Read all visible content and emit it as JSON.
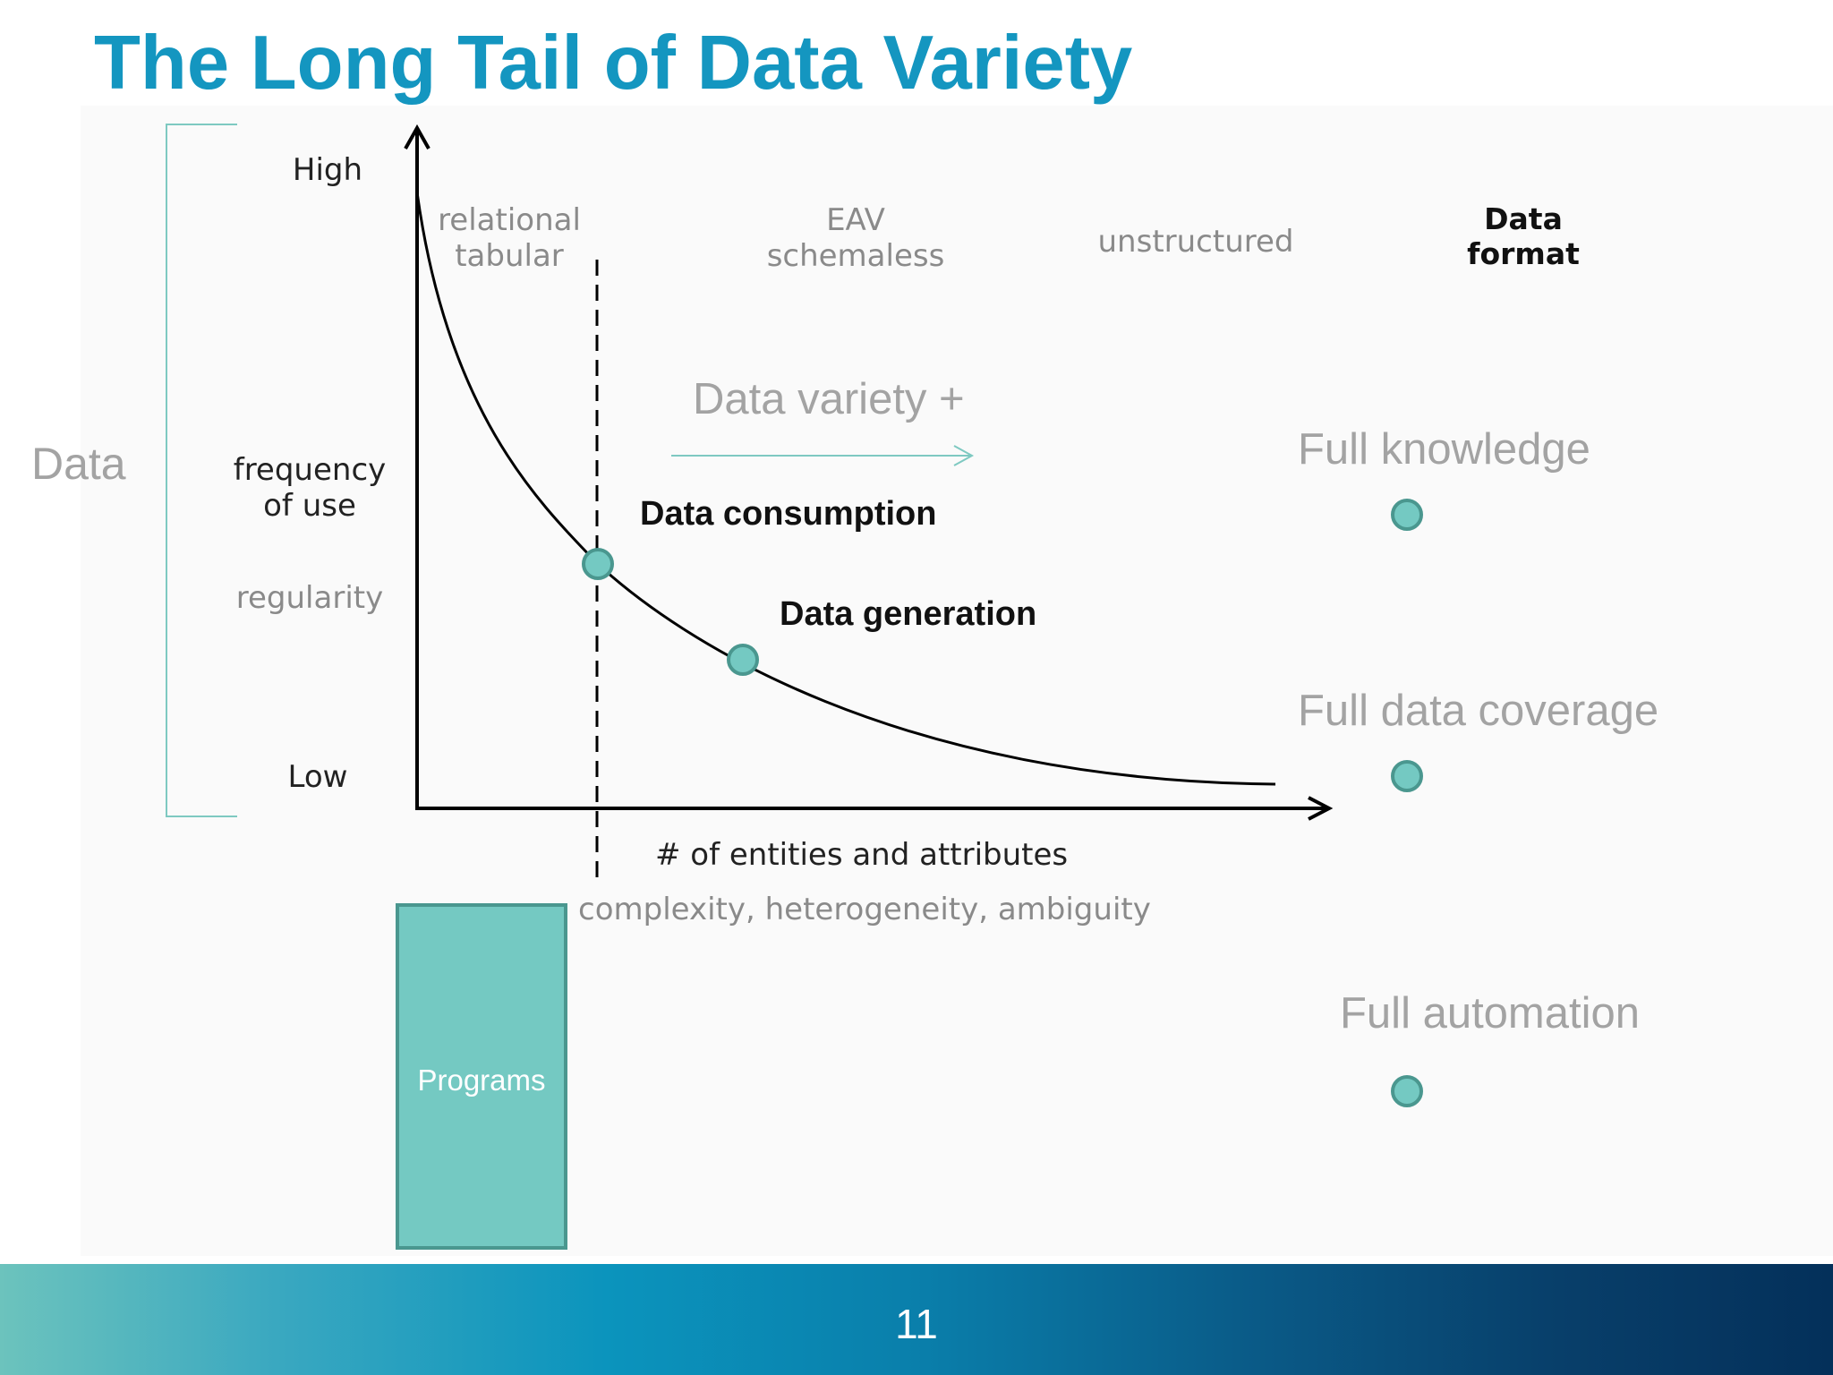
{
  "slide": {
    "title": "The Long Tail of Data Variety",
    "page_number": "11"
  },
  "left_bracket": {
    "label": "Data"
  },
  "y_axis": {
    "high": "High",
    "frequency_line1": "frequency",
    "frequency_line2": "of use",
    "regularity": "regularity",
    "low": "Low"
  },
  "formats": {
    "relational_line1": "relational",
    "relational_line2": "tabular",
    "eav_line1": "EAV",
    "eav_line2": "schemaless",
    "unstructured": "unstructured",
    "header_line1": "Data",
    "header_line2": "format"
  },
  "variety": {
    "label": "Data variety +"
  },
  "points": {
    "consumption": "Data consumption",
    "generation": "Data generation"
  },
  "x_axis": {
    "label": "# of entities and attributes",
    "sublabel": "complexity, heterogeneity, ambiguity"
  },
  "programs": {
    "label": "Programs"
  },
  "goals": [
    {
      "label": "Full knowledge"
    },
    {
      "label": "Full data coverage"
    },
    {
      "label": "Full automation"
    }
  ],
  "colors": {
    "title": "#1496c0",
    "accent_teal": "#74c9c2",
    "teal_border": "#4a978f",
    "bracket": "#7ec9c1",
    "grey_text": "#a3a3a3"
  }
}
